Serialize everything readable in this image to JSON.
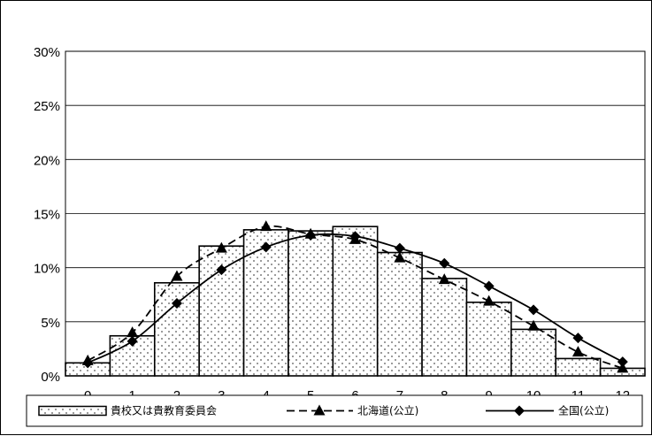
{
  "chart_data": {
    "type": "bar+line",
    "x": [
      0,
      1,
      2,
      3,
      4,
      5,
      6,
      7,
      8,
      9,
      10,
      11,
      12
    ],
    "x_tick_labels": [
      "0",
      "1",
      "2",
      "3",
      "4",
      "5",
      "6",
      "7",
      "8",
      "9",
      "10",
      "11",
      "12"
    ],
    "y_tick_labels": [
      "0%",
      "5%",
      "10%",
      "15%",
      "20%",
      "25%",
      "30%"
    ],
    "ylim": [
      0,
      30
    ],
    "y_unit": "%",
    "grid": true,
    "legend_position": "bottom",
    "series": [
      {
        "name": "貴校又は貴教育委員会",
        "kind": "bar",
        "values": [
          1.2,
          3.7,
          8.6,
          12.0,
          13.5,
          13.4,
          13.8,
          11.4,
          9.0,
          6.8,
          4.3,
          1.6,
          0.7
        ]
      },
      {
        "name": "北海道(公立)",
        "kind": "line-dashed-triangle",
        "values": [
          1.4,
          4.0,
          9.2,
          11.8,
          13.8,
          13.1,
          12.6,
          10.9,
          8.9,
          6.9,
          4.6,
          2.2,
          0.7
        ]
      },
      {
        "name": "全国(公立)",
        "kind": "line-solid-diamond",
        "values": [
          1.2,
          3.2,
          6.7,
          9.8,
          11.9,
          13.0,
          12.9,
          11.8,
          10.4,
          8.3,
          6.1,
          3.5,
          1.3
        ]
      }
    ]
  }
}
